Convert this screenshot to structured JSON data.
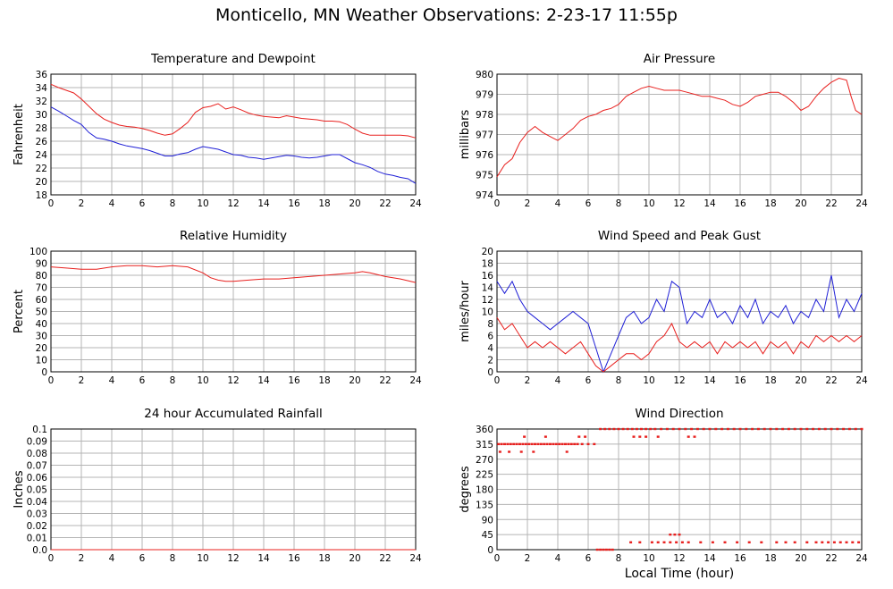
{
  "page": {
    "title": "Monticello, MN Weather Observations: 2-23-17 11:55p",
    "x_axis_label": "Local Time (hour)"
  },
  "colors": {
    "red": "#e8201e",
    "blue": "#1f1fd6",
    "grid": "#b4b4b4"
  },
  "chart_data": [
    {
      "id": "temp",
      "type": "line",
      "title": "Temperature and Dewpoint",
      "ylabel": "Fahrenheit",
      "xlim": [
        0,
        24
      ],
      "ylim": [
        18,
        36
      ],
      "x_ticks": [
        0,
        2,
        4,
        6,
        8,
        10,
        12,
        14,
        16,
        18,
        20,
        22,
        24
      ],
      "y_ticks": [
        18,
        20,
        22,
        24,
        26,
        28,
        30,
        32,
        34,
        36
      ],
      "grid": true,
      "series": [
        {
          "color": "#e8201e",
          "x": [
            0,
            0.5,
            1,
            1.5,
            2,
            2.5,
            3,
            3.5,
            4,
            4.5,
            5,
            5.5,
            6,
            6.5,
            7,
            7.5,
            8,
            8.5,
            9,
            9.5,
            10,
            10.5,
            11,
            11.5,
            12,
            12.5,
            13,
            13.5,
            14,
            14.5,
            15,
            15.5,
            16,
            16.5,
            17,
            17.5,
            18,
            18.5,
            19,
            19.5,
            20,
            20.5,
            21,
            21.5,
            22,
            22.5,
            23,
            23.5,
            24
          ],
          "y": [
            34.5,
            34,
            33.6,
            33.2,
            32.3,
            31.2,
            30.1,
            29.3,
            28.8,
            28.4,
            28.2,
            28.1,
            27.9,
            27.6,
            27.2,
            26.9,
            27.1,
            27.9,
            28.8,
            30.3,
            31,
            31.2,
            31.6,
            30.8,
            31.1,
            30.7,
            30.2,
            29.9,
            29.7,
            29.6,
            29.5,
            29.8,
            29.6,
            29.4,
            29.3,
            29.2,
            29,
            29,
            28.9,
            28.5,
            27.8,
            27.2,
            26.9,
            26.9,
            26.9,
            26.9,
            26.9,
            26.8,
            26.5
          ]
        },
        {
          "color": "#1f1fd6",
          "x": [
            0,
            0.5,
            1,
            1.5,
            2,
            2.5,
            3,
            3.5,
            4,
            4.5,
            5,
            5.5,
            6,
            6.5,
            7,
            7.5,
            8,
            8.5,
            9,
            9.5,
            10,
            10.5,
            11,
            11.5,
            12,
            12.5,
            13,
            13.5,
            14,
            14.5,
            15,
            15.5,
            16,
            16.5,
            17,
            17.5,
            18,
            18.5,
            19,
            19.5,
            20,
            20.5,
            21,
            21.5,
            22,
            22.5,
            23,
            23.5,
            24
          ],
          "y": [
            31.1,
            30.5,
            29.8,
            29.1,
            28.5,
            27.3,
            26.5,
            26.3,
            26,
            25.6,
            25.3,
            25.1,
            24.9,
            24.6,
            24.2,
            23.8,
            23.8,
            24.1,
            24.3,
            24.8,
            25.2,
            25,
            24.8,
            24.4,
            24,
            23.9,
            23.6,
            23.5,
            23.3,
            23.5,
            23.7,
            23.9,
            23.8,
            23.6,
            23.5,
            23.6,
            23.8,
            24,
            24,
            23.4,
            22.8,
            22.5,
            22.1,
            21.5,
            21.1,
            20.9,
            20.6,
            20.4,
            19.7
          ]
        }
      ]
    },
    {
      "id": "pressure",
      "type": "line",
      "title": "Air Pressure",
      "ylabel": "millibars",
      "xlim": [
        0,
        24
      ],
      "ylim": [
        974,
        980
      ],
      "x_ticks": [
        0,
        2,
        4,
        6,
        8,
        10,
        12,
        14,
        16,
        18,
        20,
        22,
        24
      ],
      "y_ticks": [
        974,
        975,
        976,
        977,
        978,
        979,
        980
      ],
      "grid": true,
      "series": [
        {
          "color": "#e8201e",
          "x": [
            0,
            0.5,
            1,
            1.5,
            2,
            2.5,
            3,
            3.5,
            4,
            4.5,
            5,
            5.5,
            6,
            6.5,
            7,
            7.5,
            8,
            8.5,
            9,
            9.5,
            10,
            10.5,
            11,
            11.5,
            12,
            12.5,
            13,
            13.5,
            14,
            14.5,
            15,
            15.5,
            16,
            16.5,
            17,
            17.5,
            18,
            18.5,
            19,
            19.5,
            20,
            20.5,
            21,
            21.5,
            22,
            22.5,
            23,
            23.3,
            23.6,
            24
          ],
          "y": [
            974.9,
            975.5,
            975.8,
            976.6,
            977.1,
            977.4,
            977.1,
            976.9,
            976.7,
            977.0,
            977.3,
            977.7,
            977.9,
            978.0,
            978.2,
            978.3,
            978.5,
            978.9,
            979.1,
            979.3,
            979.4,
            979.3,
            979.2,
            979.2,
            979.2,
            979.1,
            979.0,
            978.9,
            978.9,
            978.8,
            978.7,
            978.5,
            978.4,
            978.6,
            978.9,
            979.0,
            979.1,
            979.1,
            978.9,
            978.6,
            978.2,
            978.4,
            978.9,
            979.3,
            979.6,
            979.8,
            979.7,
            978.9,
            978.2,
            978.0
          ]
        }
      ]
    },
    {
      "id": "humidity",
      "type": "line",
      "title": "Relative Humidity",
      "ylabel": "Percent",
      "xlim": [
        0,
        24
      ],
      "ylim": [
        0,
        100
      ],
      "x_ticks": [
        0,
        2,
        4,
        6,
        8,
        10,
        12,
        14,
        16,
        18,
        20,
        22,
        24
      ],
      "y_ticks": [
        0,
        10,
        20,
        30,
        40,
        50,
        60,
        70,
        80,
        90,
        100
      ],
      "grid": true,
      "series": [
        {
          "color": "#e8201e",
          "x": [
            0,
            1,
            2,
            3,
            4,
            5,
            6,
            7,
            8,
            9,
            10,
            10.5,
            11,
            11.5,
            12,
            13,
            14,
            15,
            16,
            17,
            18,
            19,
            20,
            20.5,
            21,
            22,
            23,
            24
          ],
          "y": [
            87,
            86,
            85,
            85,
            87,
            88,
            88,
            87,
            88,
            87,
            82,
            78,
            76,
            75,
            75,
            76,
            77,
            77,
            78,
            79,
            80,
            81,
            82,
            83,
            82,
            79,
            77,
            74
          ]
        }
      ]
    },
    {
      "id": "wind",
      "type": "line",
      "title": "Wind Speed and Peak Gust",
      "ylabel": "miles/hour",
      "xlim": [
        0,
        24
      ],
      "ylim": [
        0,
        20
      ],
      "x_ticks": [
        0,
        2,
        4,
        6,
        8,
        10,
        12,
        14,
        16,
        18,
        20,
        22,
        24
      ],
      "y_ticks": [
        0,
        2,
        4,
        6,
        8,
        10,
        12,
        14,
        16,
        18,
        20
      ],
      "grid": true,
      "series": [
        {
          "color": "#1f1fd6",
          "x": [
            0,
            0.5,
            1,
            1.5,
            2,
            2.5,
            3,
            3.5,
            4,
            4.5,
            5,
            5.5,
            6,
            6.5,
            7,
            7.5,
            8,
            8.5,
            9,
            9.5,
            10,
            10.5,
            11,
            11.5,
            12,
            12.5,
            13,
            13.5,
            14,
            14.5,
            15,
            15.5,
            16,
            16.5,
            17,
            17.5,
            18,
            18.5,
            19,
            19.5,
            20,
            20.5,
            21,
            21.5,
            22,
            22.5,
            23,
            23.5,
            24
          ],
          "y": [
            15,
            13,
            15,
            12,
            10,
            9,
            8,
            7,
            8,
            9,
            10,
            9,
            8,
            4,
            0,
            3,
            6,
            9,
            10,
            8,
            9,
            12,
            10,
            15,
            14,
            8,
            10,
            9,
            12,
            9,
            10,
            8,
            11,
            9,
            12,
            8,
            10,
            9,
            11,
            8,
            10,
            9,
            12,
            10,
            16,
            9,
            12,
            10,
            13
          ]
        },
        {
          "color": "#e8201e",
          "x": [
            0,
            0.5,
            1,
            1.5,
            2,
            2.5,
            3,
            3.5,
            4,
            4.5,
            5,
            5.5,
            6,
            6.5,
            7,
            7.5,
            8,
            8.5,
            9,
            9.5,
            10,
            10.5,
            11,
            11.5,
            12,
            12.5,
            13,
            13.5,
            14,
            14.5,
            15,
            15.5,
            16,
            16.5,
            17,
            17.5,
            18,
            18.5,
            19,
            19.5,
            20,
            20.5,
            21,
            21.5,
            22,
            22.5,
            23,
            23.5,
            24
          ],
          "y": [
            9,
            7,
            8,
            6,
            4,
            5,
            4,
            5,
            4,
            3,
            4,
            5,
            3,
            1,
            0,
            1,
            2,
            3,
            3,
            2,
            3,
            5,
            6,
            8,
            5,
            4,
            5,
            4,
            5,
            3,
            5,
            4,
            5,
            4,
            5,
            3,
            5,
            4,
            5,
            3,
            5,
            4,
            6,
            5,
            6,
            5,
            6,
            5,
            6
          ]
        }
      ]
    },
    {
      "id": "rain",
      "type": "line",
      "title": "24 hour Accumulated Rainfall",
      "ylabel": "Inches",
      "xlim": [
        0,
        24
      ],
      "ylim": [
        0,
        0.1
      ],
      "x_ticks": [
        0,
        2,
        4,
        6,
        8,
        10,
        12,
        14,
        16,
        18,
        20,
        22,
        24
      ],
      "y_ticks": [
        "0.0",
        "0.01",
        "0.02",
        "0.03",
        "0.04",
        "0.05",
        "0.06",
        "0.07",
        "0.08",
        "0.09",
        "0.1"
      ],
      "grid": true,
      "series": [
        {
          "color": "#e8201e",
          "x": [
            0,
            24
          ],
          "y": [
            0,
            0
          ]
        }
      ]
    },
    {
      "id": "direction",
      "type": "scatter",
      "title": "Wind Direction",
      "ylabel": "degrees",
      "xlim": [
        0,
        24
      ],
      "ylim": [
        0,
        360
      ],
      "x_ticks": [
        0,
        2,
        4,
        6,
        8,
        10,
        12,
        14,
        16,
        18,
        20,
        22,
        24
      ],
      "y_ticks": [
        0,
        45,
        90,
        135,
        180,
        225,
        270,
        315,
        360
      ],
      "grid": true,
      "series": [
        {
          "color": "#e8201e",
          "x": [
            0.1,
            0.3,
            0.5,
            0.7,
            0.9,
            1.1,
            1.3,
            1.5,
            1.7,
            1.9,
            2.1,
            2.3,
            2.5,
            2.7,
            2.9,
            3.1,
            3.3,
            3.5,
            3.7,
            3.9,
            4.1,
            4.3,
            4.5,
            4.7,
            4.9,
            5.1,
            5.3,
            5.6,
            6.0,
            6.4,
            0.2,
            0.8,
            1.6,
            2.4,
            4.6,
            1.8,
            3.2,
            5.4,
            5.8,
            6.8,
            7.1,
            7.4,
            7.7,
            8.0,
            8.3,
            8.6,
            8.9,
            9.2,
            9.5,
            9.8,
            10.1,
            10.4,
            10.8,
            11.2,
            11.6,
            12.0,
            12.4,
            12.8,
            13.2,
            13.6,
            14.0,
            14.4,
            14.8,
            15.2,
            15.6,
            16.0,
            16.4,
            16.8,
            17.2,
            17.6,
            18.0,
            18.4,
            18.8,
            19.2,
            19.6,
            20.0,
            20.4,
            20.8,
            21.2,
            21.6,
            22.0,
            22.4,
            22.8,
            23.2,
            23.6,
            24.0,
            9.0,
            9.4,
            9.8,
            10.6,
            12.6,
            13.0,
            6.6,
            6.8,
            7.0,
            7.2,
            7.4,
            7.6,
            8.8,
            9.4,
            10.2,
            10.6,
            11.0,
            11.4,
            11.8,
            12.2,
            12.6,
            13.4,
            14.2,
            15.0,
            15.8,
            16.6,
            17.4,
            18.4,
            19.0,
            19.6,
            20.4,
            21.0,
            21.4,
            21.8,
            22.2,
            22.6,
            23.0,
            23.4,
            23.8,
            11.4,
            11.7,
            12.0
          ],
          "y": [
            315,
            315,
            315,
            315,
            315,
            315,
            315,
            315,
            315,
            315,
            315,
            315,
            315,
            315,
            315,
            315,
            315,
            315,
            315,
            315,
            315,
            315,
            315,
            315,
            315,
            315,
            315,
            315,
            315,
            315,
            292,
            292,
            292,
            292,
            292,
            337,
            337,
            337,
            337,
            360,
            360,
            360,
            360,
            360,
            360,
            360,
            360,
            360,
            360,
            360,
            360,
            360,
            360,
            360,
            360,
            360,
            360,
            360,
            360,
            360,
            360,
            360,
            360,
            360,
            360,
            360,
            360,
            360,
            360,
            360,
            360,
            360,
            360,
            360,
            360,
            360,
            360,
            360,
            360,
            360,
            360,
            360,
            360,
            360,
            360,
            360,
            337,
            337,
            337,
            337,
            337,
            337,
            0,
            0,
            0,
            0,
            0,
            0,
            22,
            22,
            22,
            22,
            22,
            22,
            22,
            22,
            22,
            22,
            22,
            22,
            22,
            22,
            22,
            22,
            22,
            22,
            22,
            22,
            22,
            22,
            22,
            22,
            22,
            22,
            22,
            45,
            45,
            45
          ]
        }
      ]
    }
  ]
}
